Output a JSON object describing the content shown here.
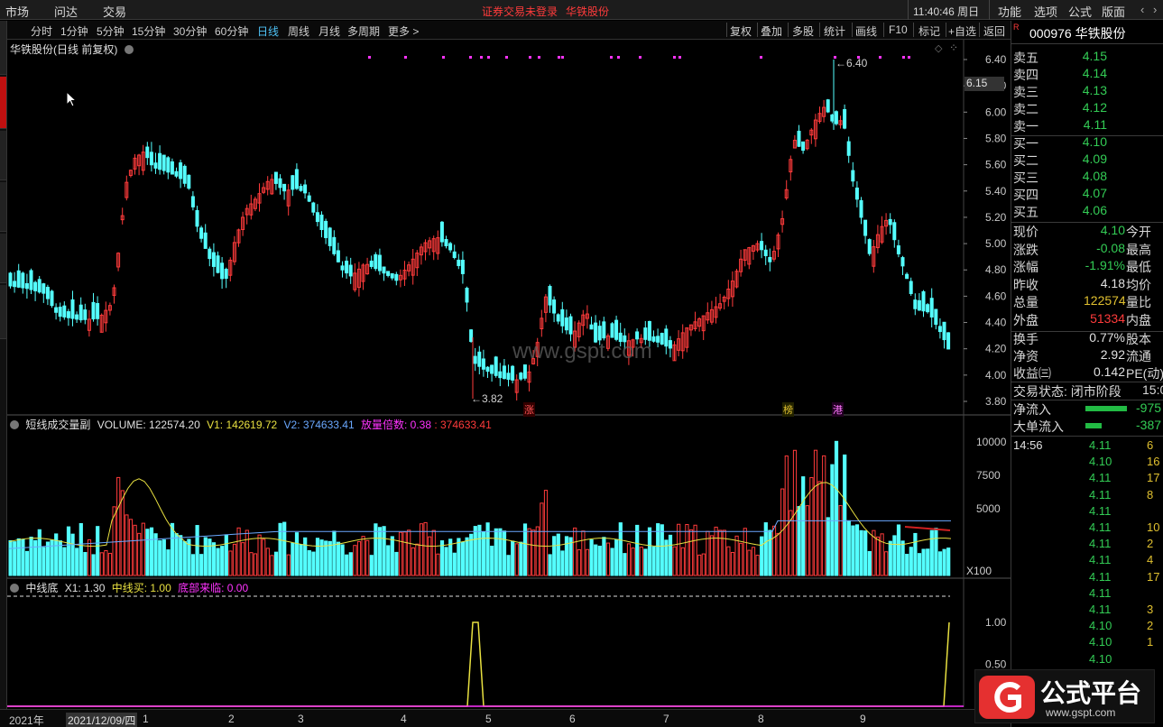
{
  "menubar": {
    "left_items": [
      "市场",
      "问达",
      "交易"
    ],
    "status_not_logged": "证券交易未登录",
    "status_stock": "华铁股份",
    "clock": "11:40:46 周日",
    "right_items": [
      "功能",
      "选项",
      "公式",
      "版面"
    ]
  },
  "periods": [
    "分时",
    "1分钟",
    "5分钟",
    "15分钟",
    "30分钟",
    "60分钟",
    "日线",
    "周线",
    "月线",
    "多周期",
    "更多 >"
  ],
  "active_period": "日线",
  "tools": [
    "复权",
    "叠加",
    "多股",
    "统计",
    "画线",
    "F10",
    "标记",
    "+自选",
    "返回"
  ],
  "main_chart": {
    "stock_title": "华铁股份(日线 前复权)",
    "y_ticks": [
      "6.40",
      "6.20",
      "6.00",
      "5.80",
      "5.60",
      "5.40",
      "5.20",
      "5.00",
      "4.80",
      "4.60",
      "4.40",
      "4.20",
      "4.00",
      "3.80"
    ],
    "current_price_tag": "6.15",
    "high_label": "6.40",
    "low_label": "3.82",
    "watermark": "www.gspt.com",
    "markers": [
      "涨",
      "榜",
      "港"
    ]
  },
  "volume_panel": {
    "title": "短线成交量副",
    "volume_label": "VOLUME: 122574.20",
    "v1_label": "V1: 142619.72",
    "v2_label": "V2: 374633.41",
    "ratio_label": "放量倍数: 0.38",
    "ratio_value": ": 374633.41",
    "y_ticks": [
      "10000",
      "7500",
      "5000"
    ],
    "unit": "X100"
  },
  "indicator_panel": {
    "title": "中线底",
    "x1_label": "X1: 1.30",
    "buy_label": "中线买: 1.00",
    "bottom_label": "底部来临: 0.00",
    "y_ticks": [
      "1.00",
      "0.50"
    ]
  },
  "date_axis": {
    "year": "2021年",
    "cursor_date": "2021/12/09/四",
    "months": [
      "1",
      "2",
      "3",
      "4",
      "5",
      "6",
      "7",
      "8",
      "9"
    ]
  },
  "right_panel": {
    "code_badge": "R",
    "code": "000976 华铁股份",
    "asks": [
      {
        "label": "卖五",
        "price": "4.15"
      },
      {
        "label": "卖四",
        "price": "4.14"
      },
      {
        "label": "卖三",
        "price": "4.13"
      },
      {
        "label": "卖二",
        "price": "4.12"
      },
      {
        "label": "卖一",
        "price": "4.11"
      }
    ],
    "bids": [
      {
        "label": "买一",
        "price": "4.10"
      },
      {
        "label": "买二",
        "price": "4.09"
      },
      {
        "label": "买三",
        "price": "4.08"
      },
      {
        "label": "买四",
        "price": "4.07"
      },
      {
        "label": "买五",
        "price": "4.06"
      }
    ],
    "stats": [
      {
        "label": "现价",
        "value": "4.10",
        "label2": "今开",
        "color": "#33cc55"
      },
      {
        "label": "涨跌",
        "value": "-0.08",
        "label2": "最高",
        "color": "#33cc55"
      },
      {
        "label": "涨幅",
        "value": "-1.91%",
        "label2": "最低",
        "color": "#33cc55"
      },
      {
        "label": "昨收",
        "value": "4.18",
        "label2": "均价",
        "color": "#e0e0e0"
      },
      {
        "label": "总量",
        "value": "122574",
        "label2": "量比",
        "color": "#e0c030"
      },
      {
        "label": "外盘",
        "value": "51334",
        "label2": "内盘",
        "color": "#ff3b3b"
      }
    ],
    "stats2": [
      {
        "label": "换手",
        "value": "0.77%",
        "label2": "股本"
      },
      {
        "label": "净资",
        "value": "2.92",
        "label2": "流通"
      },
      {
        "label": "收益㈢",
        "value": "0.142",
        "label2": "PE(动)"
      }
    ],
    "trade_status": "交易状态: 闭市阶段",
    "trade_time": "15:0",
    "net_inflow_label": "净流入",
    "net_inflow_value": "-975",
    "big_inflow_label": "大单流入",
    "big_inflow_value": "-387",
    "ticks": [
      {
        "time": "14:56",
        "price": "4.11",
        "vol": "6"
      },
      {
        "time": "",
        "price": "4.10",
        "vol": "16"
      },
      {
        "time": "",
        "price": "4.11",
        "vol": "17"
      },
      {
        "time": "",
        "price": "4.11",
        "vol": "8"
      },
      {
        "time": "",
        "price": "4.11",
        "vol": ""
      },
      {
        "time": "",
        "price": "4.11",
        "vol": "10"
      },
      {
        "time": "",
        "price": "4.11",
        "vol": "2"
      },
      {
        "time": "",
        "price": "4.11",
        "vol": "4"
      },
      {
        "time": "",
        "price": "4.11",
        "vol": "17"
      },
      {
        "time": "",
        "price": "4.11",
        "vol": ""
      },
      {
        "time": "",
        "price": "4.11",
        "vol": "3"
      },
      {
        "time": "",
        "price": "4.10",
        "vol": "2"
      },
      {
        "time": "",
        "price": "4.10",
        "vol": "1"
      },
      {
        "time": "",
        "price": "4.10",
        "vol": ""
      }
    ]
  },
  "logo": {
    "text": "公式平台",
    "url": "www.gspt.com"
  },
  "colors": {
    "up": "#ff3b3b",
    "down": "#54ffff",
    "ma_yellow": "#e8e040",
    "ma_blue": "#6aa8ff",
    "magenta": "#ff33ff"
  }
}
